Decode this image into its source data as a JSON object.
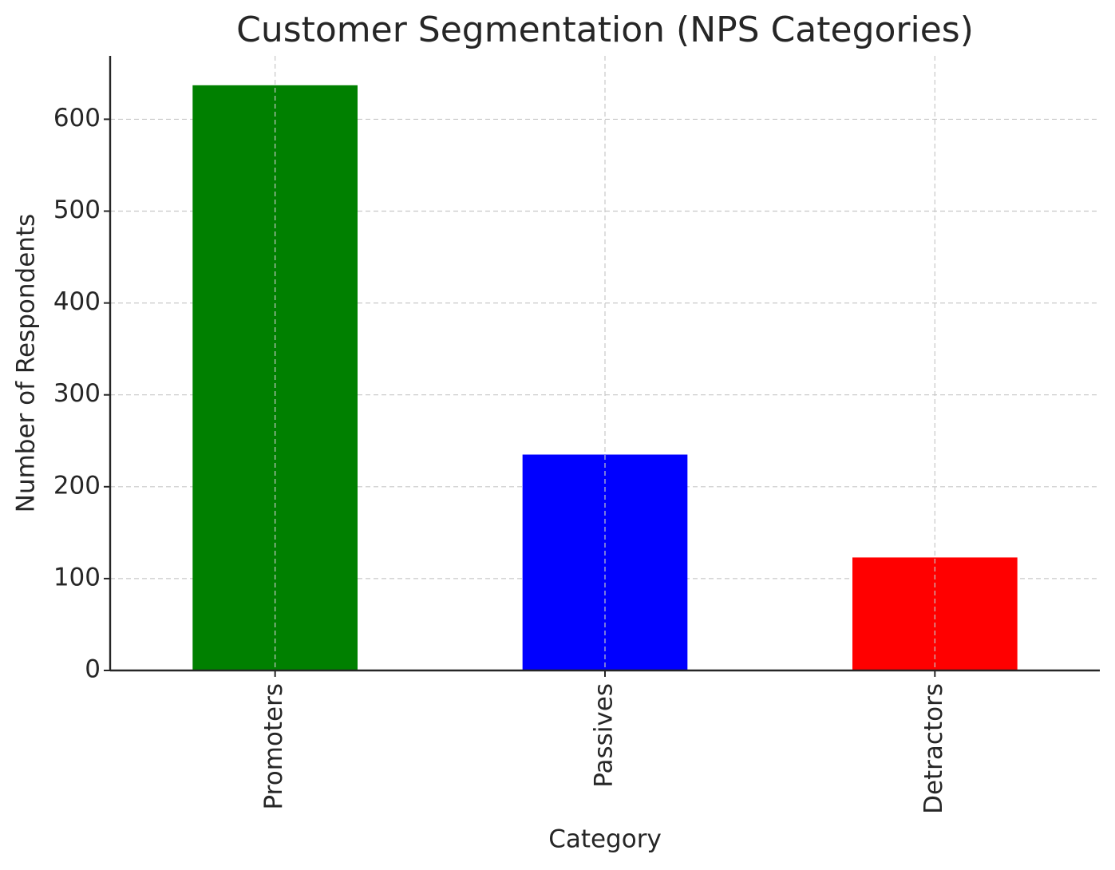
{
  "chart_data": {
    "type": "bar",
    "title": "Customer Segmentation (NPS Categories)",
    "x_label": "Category",
    "y_label": "Number of Respondents",
    "categories": [
      "Promoters",
      "Passives",
      "Detractors"
    ],
    "values": [
      637,
      235,
      123
    ],
    "colors": [
      "#008000",
      "#0000ff",
      "#ff0000"
    ],
    "ylim": [
      0,
      669
    ],
    "yticks": [
      0,
      100,
      200,
      300,
      400,
      500,
      600
    ],
    "grid": true
  }
}
